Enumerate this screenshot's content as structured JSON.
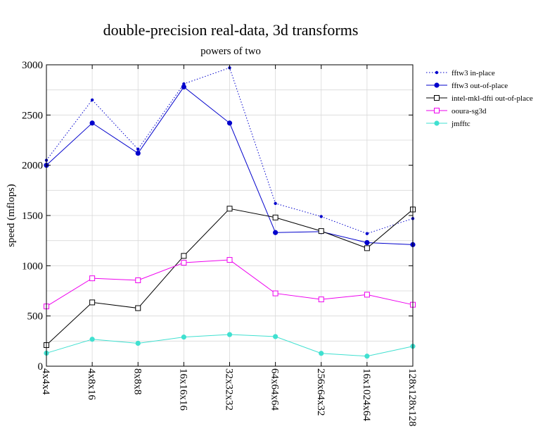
{
  "chart_data": {
    "type": "line",
    "title": "double-precision real-data, 3d transforms",
    "subtitle": "powers of two",
    "xlabel": "",
    "ylabel": "speed (mflops)",
    "ylim": [
      0,
      3000
    ],
    "yticks": [
      0,
      500,
      1000,
      1500,
      2000,
      2500,
      3000
    ],
    "grid": true,
    "legend_position": "right",
    "categories": [
      "4x4x4",
      "4x8x16",
      "8x8x8",
      "16x16x16",
      "32x32x32",
      "64x64x64",
      "256x64x32",
      "16x1024x64",
      "128x128x128"
    ],
    "series": [
      {
        "name": "fftw3 in-place",
        "color": "#0000cc",
        "line": "dotted",
        "marker": "small-dot",
        "values": [
          2050,
          2650,
          2160,
          2810,
          2970,
          1620,
          1490,
          1320,
          1470
        ]
      },
      {
        "name": "fftw3 out-of-place",
        "color": "#0000cc",
        "line": "solid",
        "marker": "dot",
        "values": [
          2000,
          2420,
          2120,
          2780,
          2420,
          1330,
          1340,
          1230,
          1210
        ]
      },
      {
        "name": "intel-mkl-dfti out-of-place",
        "color": "#000000",
        "line": "solid",
        "marker": "square",
        "values": [
          210,
          635,
          578,
          1098,
          1568,
          1480,
          1345,
          1175,
          1560
        ]
      },
      {
        "name": "ooura-sg3d",
        "color": "#ee00ee",
        "line": "solid",
        "marker": "square",
        "values": [
          595,
          875,
          855,
          1030,
          1058,
          725,
          665,
          712,
          612
        ]
      },
      {
        "name": "jmfftc",
        "color": "#40e0d0",
        "line": "solid",
        "marker": "dot",
        "values": [
          130,
          268,
          228,
          290,
          315,
          295,
          128,
          100,
          198
        ]
      }
    ]
  }
}
